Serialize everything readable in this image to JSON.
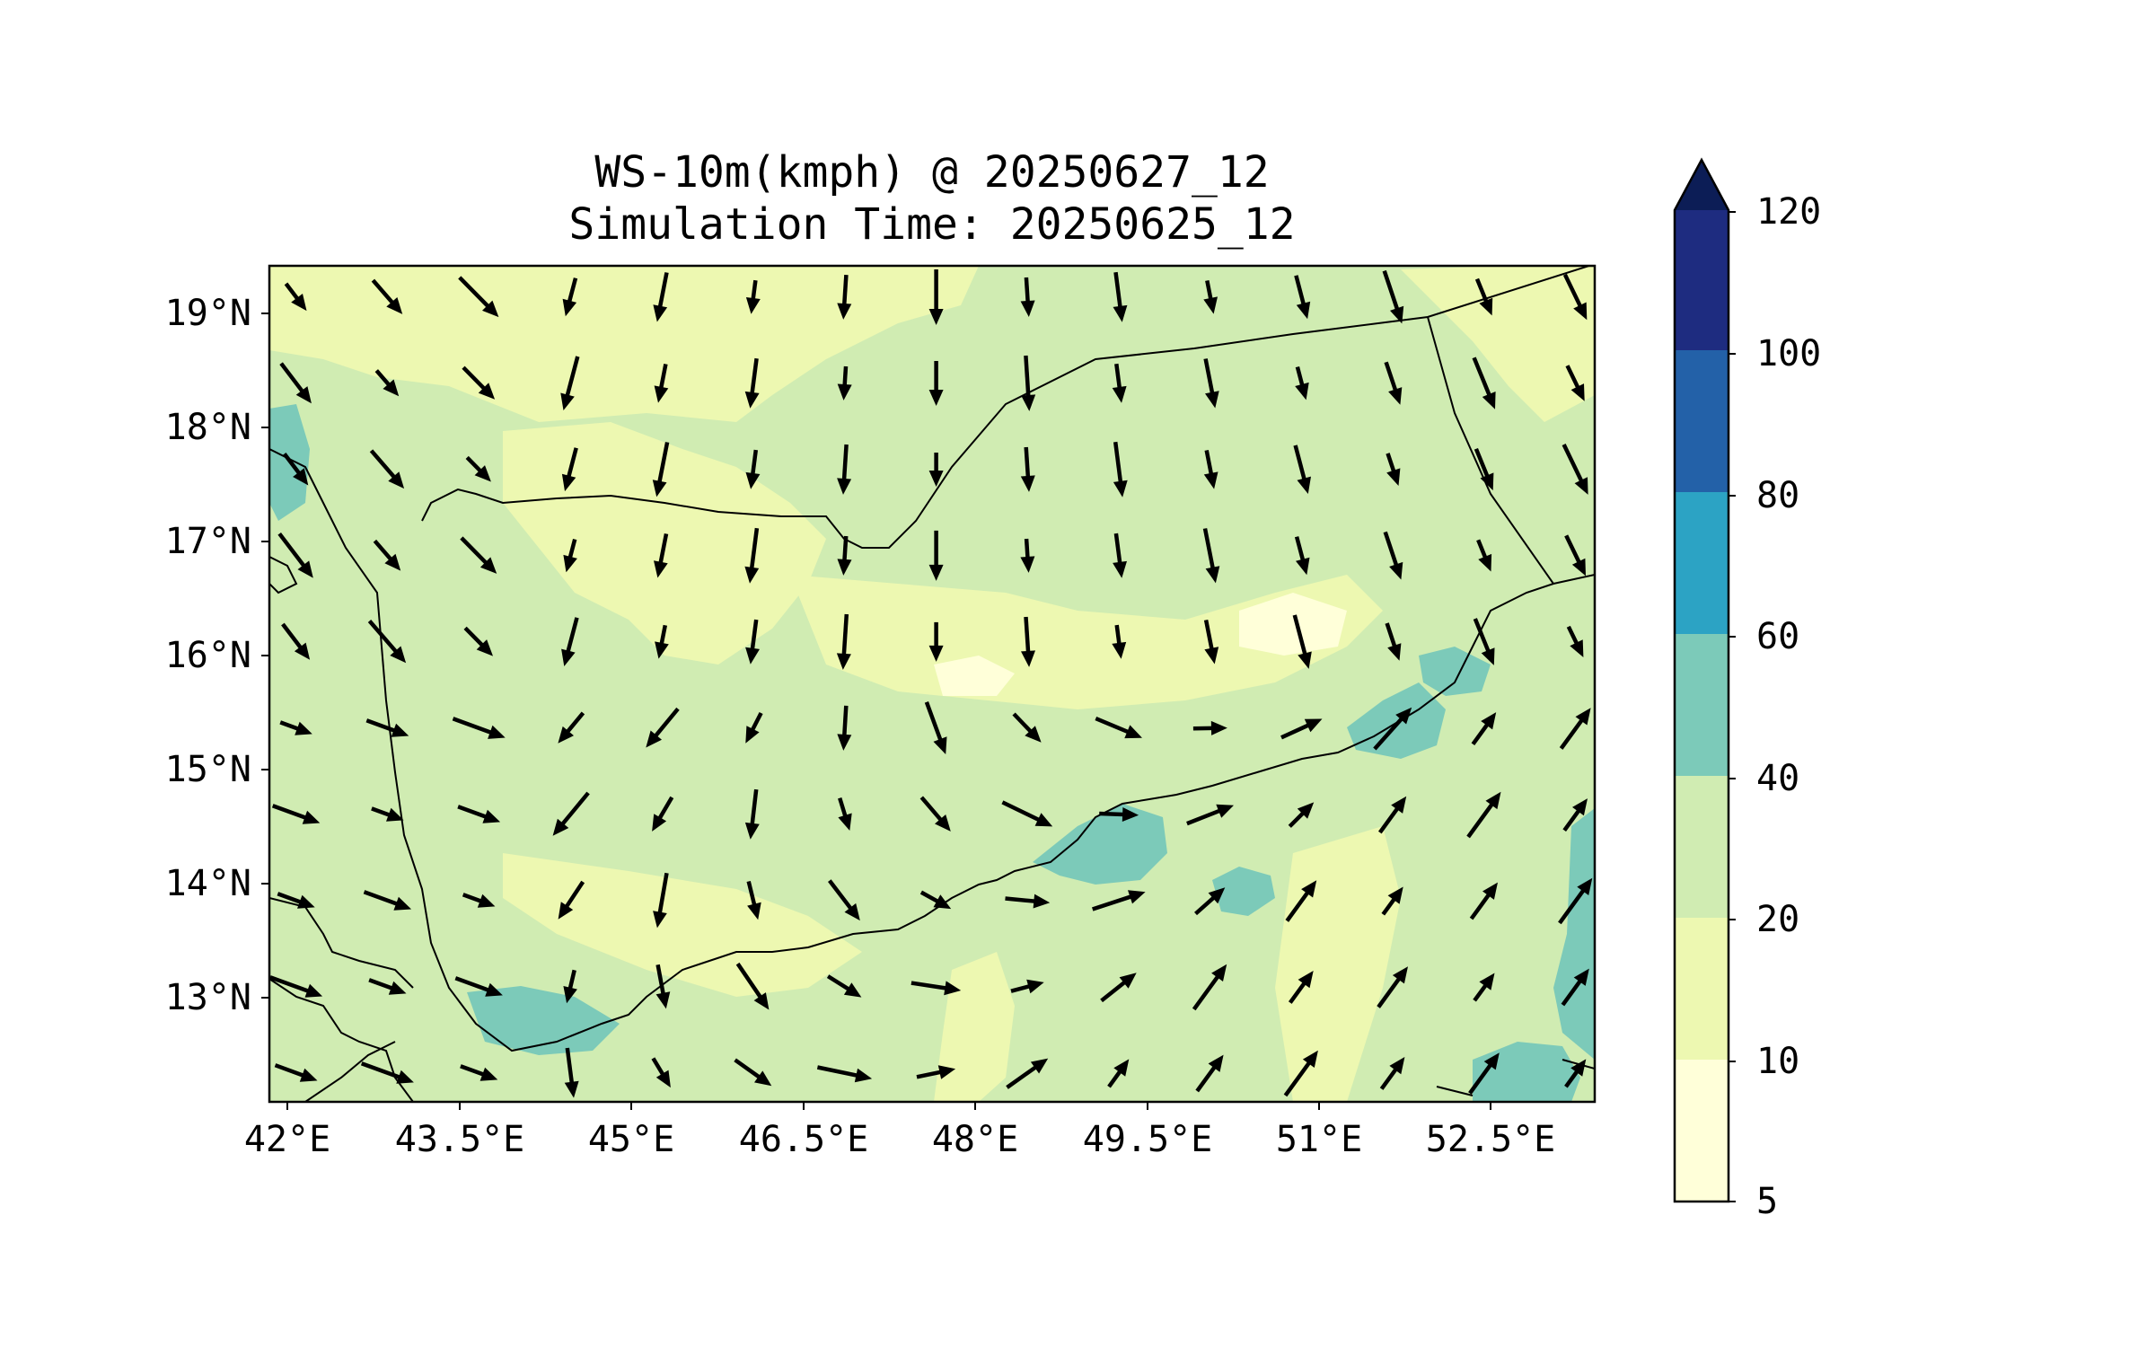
{
  "title": {
    "line1": "WS-10m(kmph) @ 20250627_12",
    "line2": "Simulation Time: 20250625_12"
  },
  "axes": {
    "lat_ticks": [
      "19°N",
      "18°N",
      "17°N",
      "16°N",
      "15°N",
      "14°N",
      "13°N"
    ],
    "lon_ticks": [
      "42°E",
      "43.5°E",
      "45°E",
      "46.5°E",
      "48°E",
      "49.5°E",
      "51°E",
      "52.5°E"
    ]
  },
  "colorbar": {
    "ticks": [
      "120",
      "100",
      "80",
      "60",
      "40",
      "20",
      "10",
      "5"
    ],
    "colors": [
      "#ffffd9",
      "#edf8b1",
      "#d0ecb2",
      "#7ccab9",
      "#2ca3c4",
      "#2361a8",
      "#1e2c80",
      "#0c1d56"
    ],
    "extend": "max"
  },
  "chart_data": {
    "type": "heatmap",
    "title": "WS-10m(kmph) @ 20250627_12",
    "subtitle": "Simulation Time: 20250625_12",
    "variable": "10 m wind speed (kmph) filled contours with wind vectors",
    "xlim": [
      41.8,
      53.3
    ],
    "ylim": [
      12.1,
      19.5
    ],
    "levels": [
      5,
      10,
      20,
      40,
      60,
      80,
      100,
      120
    ],
    "dominant_range": [
      20,
      40
    ]
  }
}
